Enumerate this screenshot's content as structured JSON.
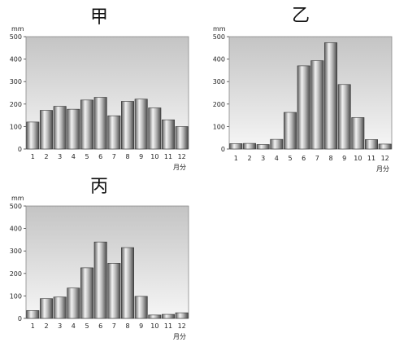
{
  "chart_data": [
    {
      "type": "bar",
      "title": "甲",
      "ylabel": "mm",
      "xlabel": "月分",
      "categories": [
        "1",
        "2",
        "3",
        "4",
        "5",
        "6",
        "7",
        "8",
        "9",
        "10",
        "11",
        "12"
      ],
      "values": [
        120,
        172,
        190,
        177,
        218,
        230,
        148,
        212,
        222,
        183,
        130,
        100
      ],
      "ylim": [
        0,
        500
      ],
      "yticks": [
        "0",
        "100",
        "200",
        "300",
        "400",
        "500"
      ],
      "grid": false
    },
    {
      "type": "bar",
      "title": "乙",
      "ylabel": "mm",
      "xlabel": "月分",
      "categories": [
        "1",
        "2",
        "3",
        "4",
        "5",
        "6",
        "7",
        "8",
        "9",
        "10",
        "11",
        "12"
      ],
      "values": [
        24,
        25,
        20,
        43,
        163,
        370,
        393,
        473,
        287,
        140,
        42,
        22
      ],
      "ylim": [
        0,
        500
      ],
      "yticks": [
        "0",
        "100",
        "200",
        "300",
        "400",
        "500"
      ],
      "grid": false
    },
    {
      "type": "bar",
      "title": "丙",
      "ylabel": "mm",
      "xlabel": "月分",
      "categories": [
        "1",
        "2",
        "3",
        "4",
        "5",
        "6",
        "7",
        "8",
        "9",
        "10",
        "11",
        "12"
      ],
      "values": [
        35,
        88,
        95,
        135,
        225,
        340,
        245,
        315,
        98,
        15,
        18,
        25
      ],
      "ylim": [
        0,
        500
      ],
      "yticks": [
        "0",
        "100",
        "200",
        "300",
        "400",
        "500"
      ],
      "grid": false
    }
  ]
}
